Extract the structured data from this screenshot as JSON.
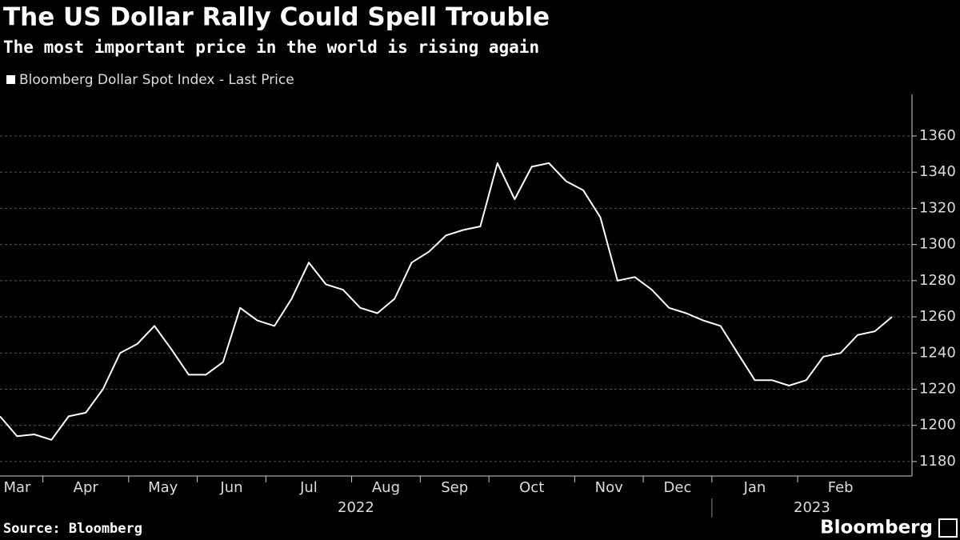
{
  "chart_data": {
    "type": "line",
    "title": "The US Dollar Rally Could Spell Trouble",
    "subtitle": "The most important price in the world is rising again",
    "source": "Source: Bloomberg",
    "brand": "Bloomberg",
    "categories": [
      "Mar",
      null,
      null,
      "Apr",
      null,
      null,
      null,
      null,
      "May",
      null,
      null,
      null,
      "Jun",
      null,
      null,
      null,
      "Jul",
      null,
      null,
      null,
      null,
      "Aug",
      null,
      null,
      null,
      "Sep",
      null,
      null,
      null,
      "Oct",
      null,
      null,
      null,
      null,
      "Nov",
      null,
      null,
      null,
      "Dec",
      null,
      null,
      null,
      "Jan",
      null,
      null,
      null,
      null,
      "Feb",
      null,
      null,
      null,
      null,
      null
    ],
    "x_groups": [
      {
        "label": "2022",
        "count": 10
      },
      {
        "label": "2023",
        "count": 2
      }
    ],
    "series": [
      {
        "name": "Bloomberg Dollar Spot Index - Last Price",
        "color": "#ffffff",
        "values": [
          1205,
          1194,
          1195,
          1192,
          1205,
          1207,
          1220,
          1240,
          1245,
          1255,
          1242,
          1228,
          1228,
          1235,
          1265,
          1258,
          1255,
          1270,
          1290,
          1278,
          1275,
          1265,
          1262,
          1270,
          1290,
          1296,
          1305,
          1308,
          1310,
          1345,
          1325,
          1343,
          1345,
          1335,
          1330,
          1315,
          1280,
          1282,
          1275,
          1265,
          1262,
          1258,
          1255,
          1240,
          1225,
          1225,
          1222,
          1225,
          1238,
          1240,
          1250,
          1252,
          1260
        ]
      }
    ],
    "ylim": [
      1172,
      1383
    ],
    "yticks": [
      1180,
      1200,
      1220,
      1240,
      1260,
      1280,
      1300,
      1320,
      1340,
      1360
    ],
    "grid": true,
    "y_axis_side": "right"
  }
}
